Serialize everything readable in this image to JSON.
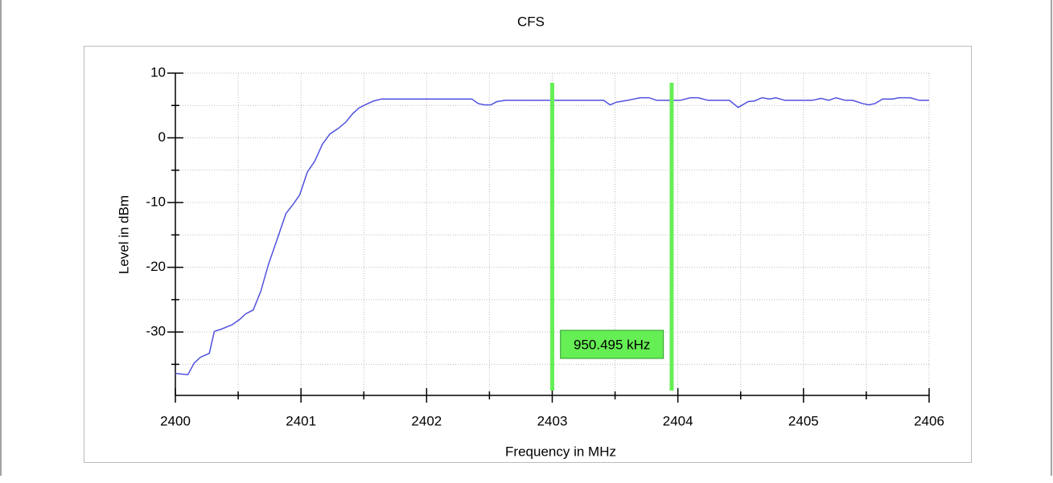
{
  "chart_data": {
    "type": "line",
    "title": "CFS",
    "xlabel": "Frequency in MHz",
    "ylabel": "Level in dBm",
    "xlim": [
      2400,
      2406
    ],
    "xticks": [
      2400,
      2401,
      2402,
      2403,
      2404,
      2405,
      2406
    ],
    "xminor": [
      2400.5,
      2401.5,
      2402.5,
      2403.5,
      2404.5,
      2405.5
    ],
    "ylim": [
      -39.8,
      10
    ],
    "yticks": [
      10,
      0,
      -10,
      -20,
      -30
    ],
    "yminor": [
      5,
      -5,
      -15,
      -25,
      -35
    ],
    "grid": true,
    "series": [
      {
        "color": "#5050e0",
        "x": [
          2400.0,
          2400.1,
          2400.15,
          2400.2,
          2400.27,
          2400.31,
          2400.36,
          2400.45,
          2400.51,
          2400.56,
          2400.62,
          2400.68,
          2400.74,
          2400.81,
          2400.88,
          2400.94,
          2400.99,
          2401.05,
          2401.11,
          2401.17,
          2401.23,
          2401.3,
          2401.36,
          2401.41,
          2401.46,
          2401.52,
          2401.58,
          2401.64,
          2402.36,
          2402.41,
          2402.46,
          2402.51,
          2402.56,
          2402.63,
          2403.41,
          2403.46,
          2403.51,
          2403.6,
          2403.7,
          2403.77,
          2403.83,
          2404.02,
          2404.1,
          2404.16,
          2404.24,
          2404.41,
          2404.48,
          2404.56,
          2404.61,
          2404.67,
          2404.73,
          2404.78,
          2404.85,
          2405.07,
          2405.14,
          2405.2,
          2405.26,
          2405.33,
          2405.39,
          2405.47,
          2405.52,
          2405.57,
          2405.63,
          2405.71,
          2405.76,
          2405.85,
          2405.92,
          2406.0
        ],
        "values": [
          -36.4,
          -36.6,
          -34.8,
          -33.9,
          -33.3,
          -29.9,
          -29.6,
          -28.9,
          -28.1,
          -27.2,
          -26.6,
          -23.7,
          -19.6,
          -15.7,
          -11.7,
          -10.2,
          -8.8,
          -5.3,
          -3.6,
          -1.0,
          0.6,
          1.5,
          2.5,
          3.7,
          4.6,
          5.2,
          5.7,
          6.0,
          6.0,
          5.3,
          5.1,
          5.1,
          5.6,
          5.8,
          5.8,
          5.1,
          5.5,
          5.8,
          6.2,
          6.2,
          5.8,
          5.8,
          6.2,
          6.2,
          5.8,
          5.8,
          4.7,
          5.6,
          5.7,
          6.2,
          6.0,
          6.2,
          5.8,
          5.8,
          6.1,
          5.8,
          6.2,
          5.8,
          5.8,
          5.3,
          5.1,
          5.3,
          6.0,
          6.0,
          6.2,
          6.2,
          5.8,
          5.8
        ]
      }
    ],
    "markers": [
      2403.0,
      2403.9505
    ],
    "marker_color": "#66ee55",
    "marker_label": "950.495 kHz"
  }
}
